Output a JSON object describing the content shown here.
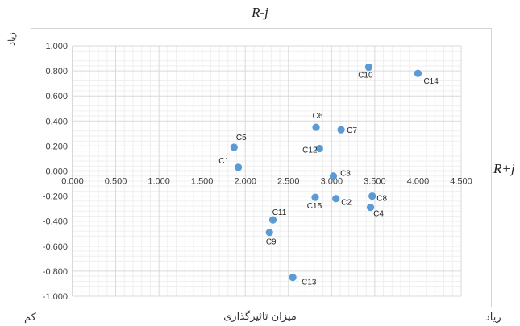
{
  "titles": {
    "top": "R-j",
    "right": "R+j"
  },
  "labels": {
    "x_axis_bottom": "میزان تاثیرگذاری",
    "x_low": "کم",
    "x_high": "زیاد",
    "y_high": "زیاد"
  },
  "colors": {
    "marker": "#5b9bd5",
    "grid_major": "#d9d9d9",
    "grid_minor": "#efefef",
    "axis": "#bfbfbf",
    "tick_text": "#404040"
  },
  "chart_data": {
    "type": "scatter",
    "xlim": [
      0,
      4.5
    ],
    "ylim": [
      -1,
      1
    ],
    "x_ticks": [
      "0.000",
      "0.500",
      "1.000",
      "1.500",
      "2.000",
      "2.500",
      "3.000",
      "3.500",
      "4.000",
      "4.500"
    ],
    "y_ticks": [
      "1.000",
      "0.800",
      "0.600",
      "0.400",
      "0.200",
      "0.000",
      "-0.200",
      "-0.400",
      "-0.600",
      "-0.800",
      "-1.000"
    ],
    "x_axis_crosses_at_y": 0,
    "grid": true,
    "points": [
      {
        "label": "C1",
        "x": 1.92,
        "y": 0.03
      },
      {
        "label": "C2",
        "x": 3.05,
        "y": -0.22
      },
      {
        "label": "C3",
        "x": 3.02,
        "y": -0.04
      },
      {
        "label": "C4",
        "x": 3.45,
        "y": -0.29
      },
      {
        "label": "C5",
        "x": 1.87,
        "y": 0.19
      },
      {
        "label": "C6",
        "x": 2.82,
        "y": 0.35
      },
      {
        "label": "C7",
        "x": 3.11,
        "y": 0.33
      },
      {
        "label": "C8",
        "x": 3.47,
        "y": -0.2
      },
      {
        "label": "C9",
        "x": 2.28,
        "y": -0.49
      },
      {
        "label": "C10",
        "x": 3.43,
        "y": 0.83
      },
      {
        "label": "C11",
        "x": 2.32,
        "y": -0.39
      },
      {
        "label": "C12",
        "x": 2.86,
        "y": 0.18
      },
      {
        "label": "C13",
        "x": 2.55,
        "y": -0.85
      },
      {
        "label": "C14",
        "x": 4.0,
        "y": 0.78
      },
      {
        "label": "C15",
        "x": 2.81,
        "y": -0.21
      }
    ]
  }
}
